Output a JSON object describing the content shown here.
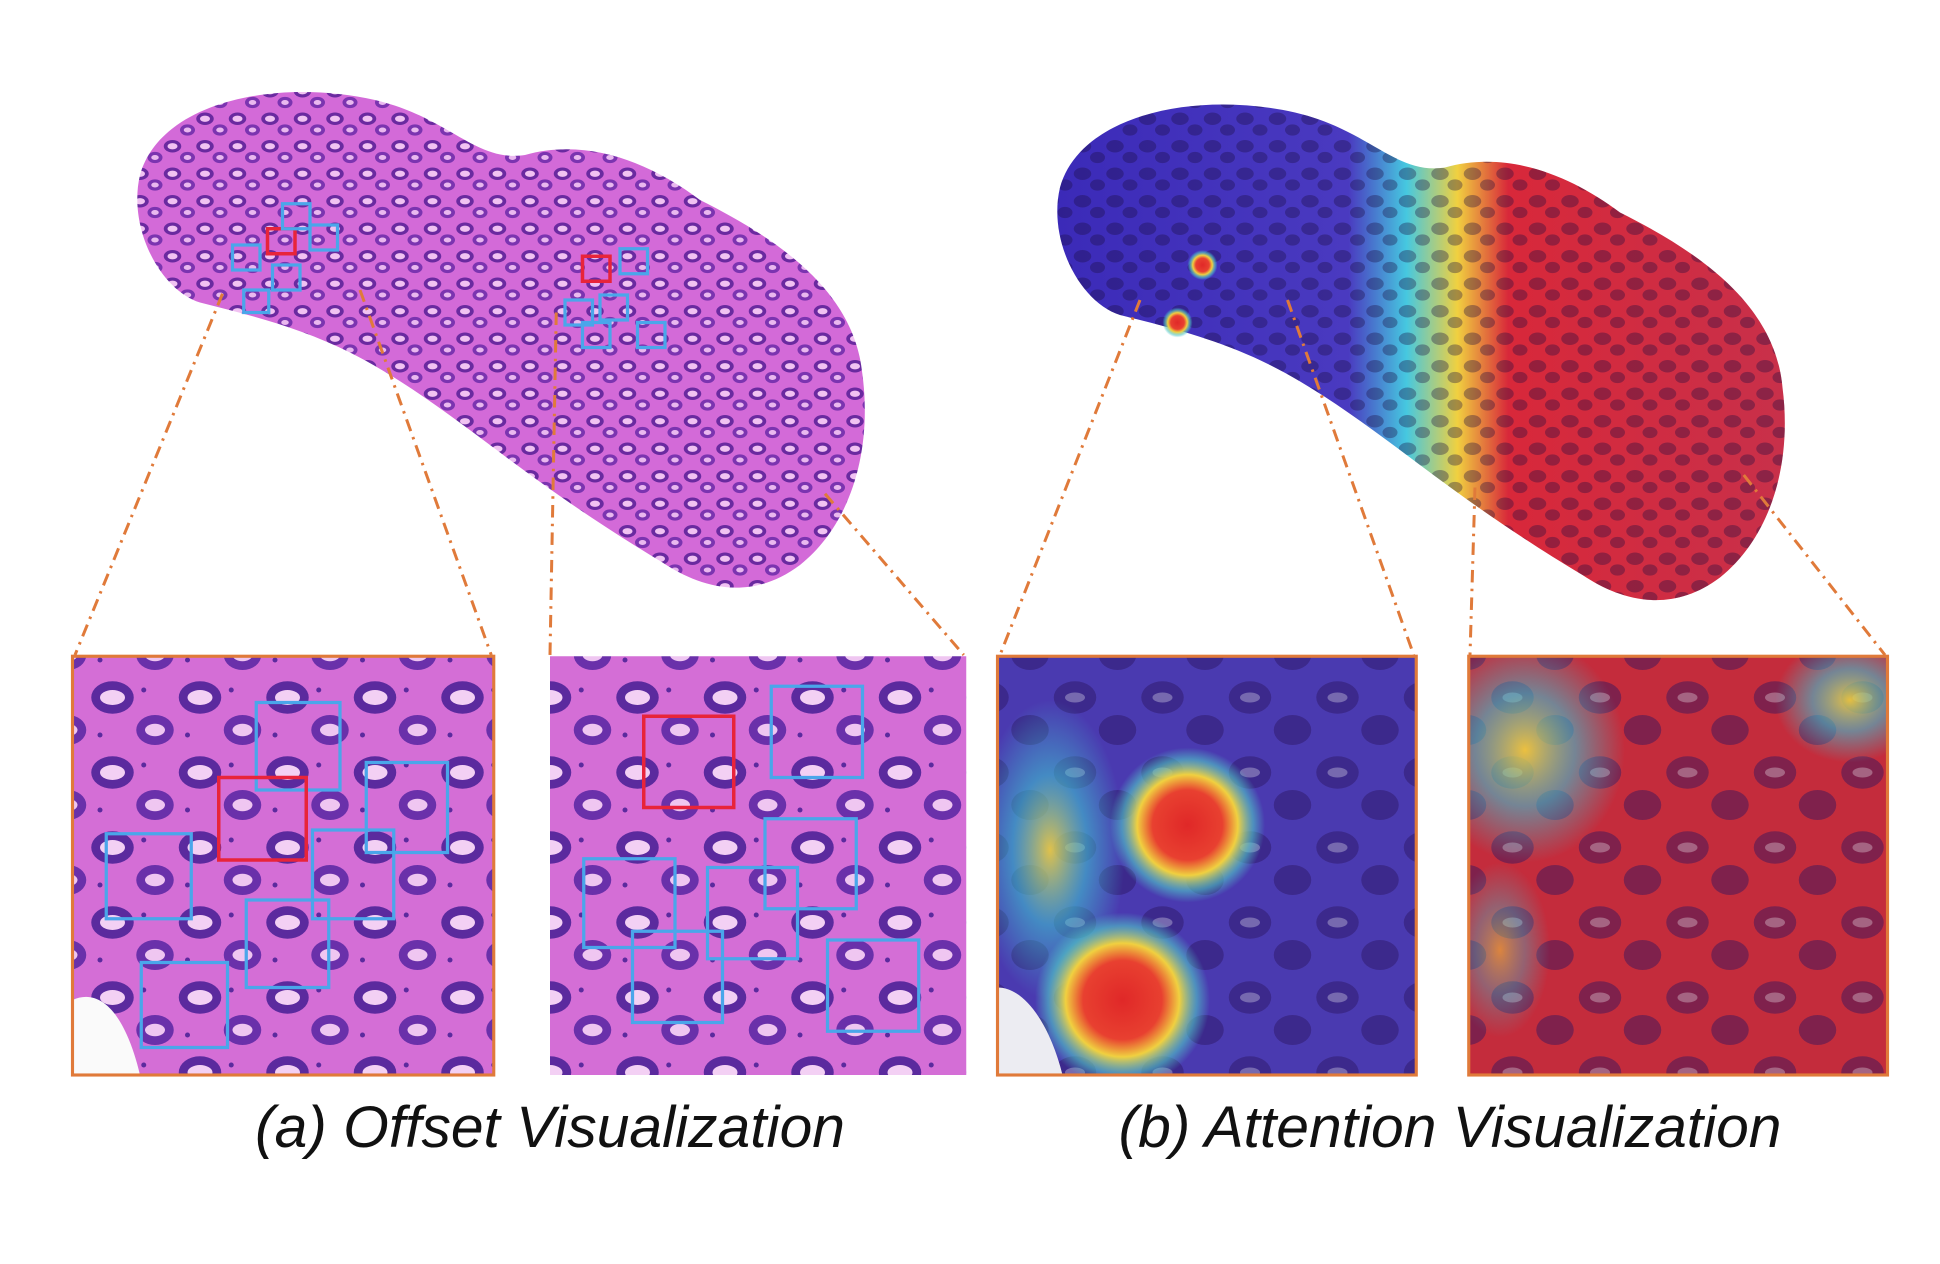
{
  "captions": {
    "a": "(a) Offset Visualization",
    "b": "(b) Attention Visualization"
  }
}
